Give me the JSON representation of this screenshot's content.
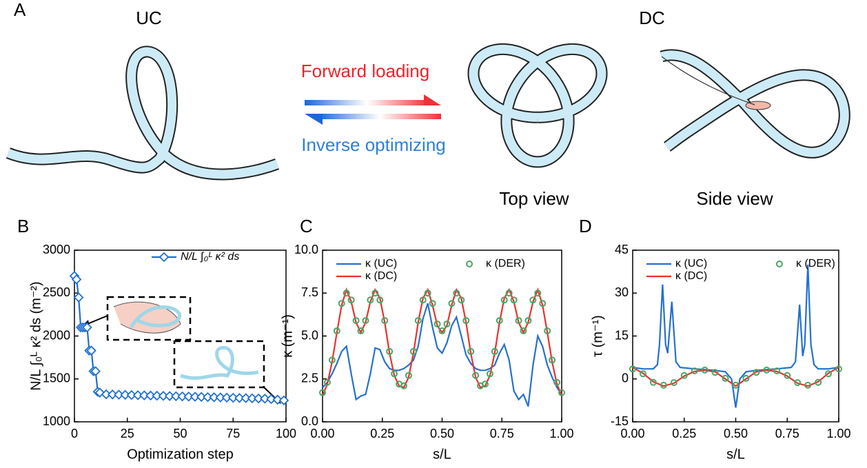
{
  "panel_a": {
    "label": "A",
    "left_title": "UC",
    "right_title": "DC",
    "forward": "Forward loading",
    "inverse": "Inverse optimizing",
    "top_view": "Top view",
    "side_view": "Side view"
  },
  "chart_data": [
    {
      "panel": "B",
      "type": "line",
      "xlabel": "Optimization step",
      "ylabel": "N/L ∫₀ᴸ κ² ds (m⁻²)",
      "x": [
        0,
        1,
        2,
        3,
        4,
        5,
        6,
        7,
        8,
        9,
        10,
        11,
        12,
        15,
        18,
        21,
        24,
        27,
        30,
        33,
        36,
        39,
        42,
        45,
        48,
        51,
        54,
        57,
        60,
        63,
        66,
        69,
        72,
        75,
        78,
        81,
        84,
        87,
        90,
        93,
        96,
        99
      ],
      "series": [
        {
          "name": "N/L ∫₀ᴸ κ² ds",
          "color": "#1f6fd1",
          "line": true,
          "marker": "diamond",
          "values": [
            2700,
            2660,
            2450,
            2100,
            2100,
            2100,
            2100,
            1830,
            1830,
            1590,
            1590,
            1350,
            1340,
            1320,
            1318,
            1316,
            1314,
            1312,
            1310,
            1308,
            1306,
            1304,
            1302,
            1300,
            1298,
            1296,
            1294,
            1292,
            1290,
            1288,
            1286,
            1284,
            1282,
            1280,
            1278,
            1276,
            1274,
            1272,
            1270,
            1265,
            1258,
            1250
          ]
        }
      ],
      "xlim": [
        0,
        100
      ],
      "xticks": [
        0,
        25,
        50,
        75,
        100
      ],
      "ylim": [
        1000,
        3000
      ],
      "yticks": [
        1000,
        1500,
        2000,
        2500,
        3000
      ],
      "legend": "upper right"
    },
    {
      "panel": "C",
      "type": "line",
      "xlabel": "s/L",
      "ylabel": "κ (m⁻¹)",
      "x": [
        0,
        0.02,
        0.04,
        0.06,
        0.08,
        0.1,
        0.12,
        0.14,
        0.16,
        0.18,
        0.2,
        0.22,
        0.24,
        0.26,
        0.28,
        0.3,
        0.32,
        0.34,
        0.36,
        0.38,
        0.4,
        0.42,
        0.44,
        0.46,
        0.48,
        0.5,
        0.52,
        0.54,
        0.56,
        0.58,
        0.6,
        0.62,
        0.64,
        0.66,
        0.68,
        0.7,
        0.72,
        0.74,
        0.76,
        0.78,
        0.8,
        0.82,
        0.84,
        0.86,
        0.88,
        0.9,
        0.92,
        0.94,
        0.96,
        0.98,
        1
      ],
      "series": [
        {
          "name": "κ (UC)",
          "color": "#2470d0",
          "line": true,
          "marker": null,
          "values": [
            2.0,
            2.3,
            2.8,
            3.4,
            4.1,
            4.4,
            2.8,
            1.3,
            1.5,
            1.6,
            2.8,
            4.3,
            4.2,
            3.5,
            3.1,
            3.0,
            3.0,
            3.1,
            3.3,
            3.6,
            4.4,
            6.0,
            6.9,
            5.5,
            4.3,
            4.0,
            4.6,
            5.6,
            6.1,
            5.0,
            3.9,
            3.4,
            3.1,
            3.0,
            3.0,
            3.1,
            3.3,
            4.0,
            4.5,
            3.6,
            1.8,
            1.3,
            1.6,
            0.9,
            3.3,
            5.0,
            4.4,
            3.3,
            2.6,
            2.0,
            1.6
          ]
        },
        {
          "name": "κ (DC)",
          "color": "#e8322e",
          "line": true,
          "marker": null,
          "values": [
            1.5,
            2.2,
            3.5,
            5.2,
            6.8,
            7.7,
            7.0,
            5.8,
            5.2,
            5.8,
            7.0,
            7.7,
            7.2,
            5.8,
            4.0,
            2.7,
            2.1,
            2.0,
            2.6,
            4.0,
            5.8,
            7.2,
            7.7,
            6.8,
            5.6,
            5.2,
            5.6,
            6.8,
            7.7,
            7.2,
            5.8,
            4.0,
            2.6,
            2.0,
            2.1,
            2.7,
            4.0,
            5.8,
            7.2,
            7.7,
            7.0,
            5.8,
            5.2,
            5.8,
            7.0,
            7.7,
            6.8,
            5.2,
            3.5,
            2.2,
            1.5
          ]
        },
        {
          "name": "κ (DER)",
          "color": "#4aa564",
          "line": false,
          "marker": "circle",
          "values": [
            1.7,
            2.3,
            3.6,
            5.3,
            6.9,
            7.5,
            7.1,
            5.9,
            5.3,
            5.9,
            7.1,
            7.5,
            7.1,
            5.9,
            4.1,
            2.8,
            2.2,
            2.1,
            2.7,
            4.1,
            5.9,
            7.1,
            7.5,
            6.9,
            5.7,
            5.3,
            5.7,
            6.9,
            7.5,
            7.1,
            5.9,
            4.1,
            2.7,
            2.1,
            2.2,
            2.8,
            4.1,
            5.9,
            7.1,
            7.5,
            7.1,
            5.9,
            5.3,
            5.9,
            7.1,
            7.5,
            6.9,
            5.3,
            3.6,
            2.3,
            1.7
          ]
        }
      ],
      "xlim": [
        0,
        1
      ],
      "xticks": [
        {
          "value": 0,
          "label": "0.00"
        },
        0.25,
        {
          "value": 0.5,
          "label": "0.50"
        },
        0.75,
        {
          "value": 1,
          "label": "1.00"
        }
      ],
      "ylim": [
        0,
        10
      ],
      "yticks": [
        {
          "value": 0,
          "label": "0.0"
        },
        2.5,
        {
          "value": 5,
          "label": "5.0"
        },
        7.5,
        {
          "value": 10,
          "label": "10.0"
        }
      ],
      "legend": "upper left"
    },
    {
      "panel": "D",
      "type": "line",
      "xlabel": "s/L",
      "ylabel": "τ (m⁻¹)",
      "series": [
        {
          "name": "κ (UC)",
          "color": "#2470d0",
          "line": true,
          "marker": null,
          "x": [
            0,
            0.05,
            0.1,
            0.12,
            0.13,
            0.145,
            0.16,
            0.17,
            0.19,
            0.21,
            0.23,
            0.3,
            0.4,
            0.45,
            0.48,
            0.5,
            0.52,
            0.55,
            0.6,
            0.7,
            0.77,
            0.79,
            0.81,
            0.825,
            0.835,
            0.85,
            0.865,
            0.88,
            0.9,
            0.95,
            1
          ],
          "values": [
            4,
            3.5,
            3.5,
            5,
            12,
            33,
            12,
            9,
            27,
            6,
            4,
            3.5,
            3,
            2.5,
            0,
            -10,
            0,
            2.5,
            3,
            3.5,
            4,
            6,
            26,
            8,
            12,
            40,
            12,
            5,
            3.5,
            3.5,
            4
          ]
        },
        {
          "name": "κ (DC)",
          "color": "#e8322e",
          "line": true,
          "marker": null,
          "x": [
            0,
            0.05,
            0.1,
            0.15,
            0.2,
            0.25,
            0.3,
            0.35,
            0.4,
            0.45,
            0.5,
            0.55,
            0.6,
            0.65,
            0.7,
            0.75,
            0.8,
            0.85,
            0.9,
            0.95,
            1
          ],
          "values": [
            4,
            2,
            -1,
            -2.5,
            -1.5,
            1,
            2.6,
            3,
            2.5,
            0,
            -2.5,
            0,
            2.5,
            3,
            2.6,
            1,
            -1.5,
            -2.5,
            -1,
            2,
            4
          ]
        },
        {
          "name": "κ (DER)",
          "color": "#4aa564",
          "line": false,
          "marker": "circle",
          "x": [
            0,
            0.05,
            0.1,
            0.15,
            0.2,
            0.25,
            0.3,
            0.35,
            0.4,
            0.45,
            0.5,
            0.55,
            0.6,
            0.65,
            0.7,
            0.75,
            0.8,
            0.85,
            0.9,
            0.95,
            1
          ],
          "values": [
            3.5,
            1.8,
            -1.2,
            -2.2,
            -1.3,
            1.2,
            2.8,
            3.1,
            2.3,
            0.2,
            -2.2,
            0.2,
            2.3,
            3.1,
            2.8,
            1.2,
            -1.3,
            -2.2,
            -1.2,
            1.8,
            3.5
          ]
        }
      ],
      "xlim": [
        0,
        1
      ],
      "xticks": [
        {
          "value": 0,
          "label": "0.00"
        },
        0.25,
        {
          "value": 0.5,
          "label": "0.50"
        },
        0.75,
        {
          "value": 1,
          "label": "1.00"
        }
      ],
      "ylim": [
        -15,
        45
      ],
      "yticks": [
        -15,
        0,
        15,
        30,
        45
      ],
      "legend": "upper left"
    }
  ]
}
